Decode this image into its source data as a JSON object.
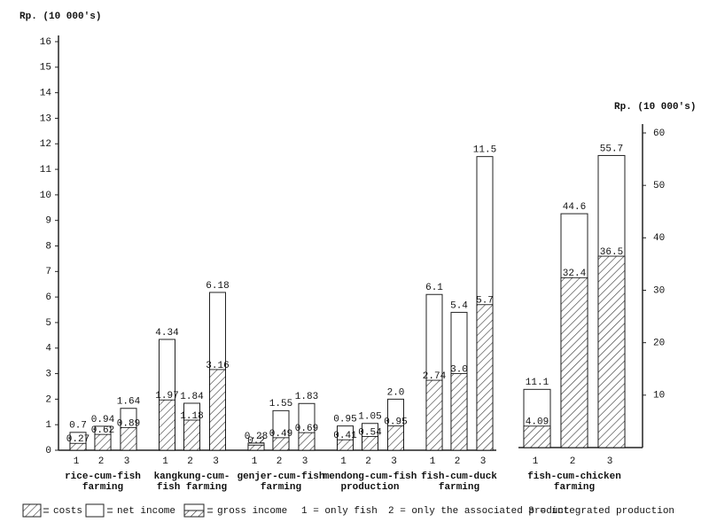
{
  "chart_data": [
    {
      "type": "bar",
      "y_label": "Rp. (10 000's)",
      "categories": [
        "rice-cum-fish farming",
        "kangkung-cum-fish farming",
        "genjer-cum-fish farming",
        "mendong-cum-fish production",
        "fish-cum-duck farming"
      ],
      "bar_labels": [
        "1",
        "2",
        "3"
      ],
      "series": [
        {
          "name": "gross income",
          "color": "#ffffff",
          "values": [
            [
              0.7,
              0.94,
              1.64
            ],
            [
              4.34,
              1.84,
              6.18
            ],
            [
              0.28,
              1.55,
              1.83
            ],
            [
              0.95,
              1.05,
              2.0
            ],
            [
              6.1,
              5.4,
              11.5
            ]
          ],
          "value_labels": [
            [
              "0.7",
              "0.94",
              "1.64"
            ],
            [
              "4.34",
              "1.84",
              "6.18"
            ],
            [
              "0.28",
              "1.55",
              "1.83"
            ],
            [
              "0.95",
              "1.05",
              "2.0"
            ],
            [
              "6.1",
              "5.4",
              "11.5"
            ]
          ]
        },
        {
          "name": "costs",
          "color": "#000000",
          "values": [
            [
              0.27,
              0.62,
              0.89
            ],
            [
              1.97,
              1.18,
              3.16
            ],
            [
              0.2,
              0.49,
              0.69
            ],
            [
              0.41,
              0.54,
              0.95
            ],
            [
              2.74,
              3.0,
              5.7
            ]
          ],
          "value_labels": [
            [
              "0.27",
              "0.62",
              "0.89"
            ],
            [
              "1.97",
              "1.18",
              "3.16"
            ],
            [
              "0.2",
              "0.49",
              "0.69"
            ],
            [
              "0.41",
              "0.54",
              "0.95"
            ],
            [
              "2.74",
              "3.0",
              "5.7"
            ]
          ]
        }
      ],
      "ylim": [
        0,
        16
      ],
      "yticks": [
        0,
        1,
        2,
        3,
        4,
        5,
        6,
        7,
        8,
        9,
        10,
        11,
        12,
        13,
        14,
        15,
        16
      ],
      "net_income_label": "net income",
      "bar_key": [
        "1 = only fish",
        "2 = only the associated product",
        "3 = integrated production"
      ]
    },
    {
      "type": "bar",
      "y_label": "Rp. (10 000's)",
      "categories": [
        "fish-cum-chicken farming"
      ],
      "bar_labels": [
        "1",
        "2",
        "3"
      ],
      "series": [
        {
          "name": "gross income",
          "color": "#ffffff",
          "values": [
            [
              11.1,
              44.6,
              55.7
            ]
          ],
          "value_labels": [
            [
              "11.1",
              "44.6",
              "55.7"
            ]
          ]
        },
        {
          "name": "costs",
          "color": "#000000",
          "values": [
            [
              4.09,
              32.4,
              36.5
            ]
          ],
          "value_labels": [
            [
              "4.09",
              "32.4",
              "36.5"
            ]
          ]
        }
      ],
      "ylim": [
        0,
        60
      ],
      "yticks": [
        10,
        20,
        30,
        40,
        50,
        60
      ]
    }
  ]
}
